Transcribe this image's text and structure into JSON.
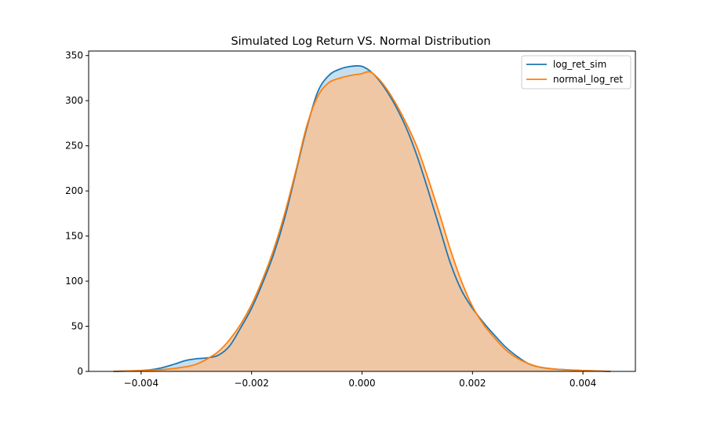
{
  "chart_data": {
    "type": "area",
    "title": "Simulated Log Return VS. Normal Distribution",
    "xlabel": "",
    "ylabel": "",
    "xlim": [
      -0.00495,
      0.00495
    ],
    "ylim": [
      0,
      355
    ],
    "xticks": [
      -0.004,
      -0.002,
      0.0,
      0.002,
      0.004
    ],
    "xtick_labels": [
      "−0.004",
      "−0.002",
      "0.000",
      "0.002",
      "0.004"
    ],
    "yticks": [
      0,
      50,
      100,
      150,
      200,
      250,
      300,
      350
    ],
    "ytick_labels": [
      "0",
      "50",
      "100",
      "150",
      "200",
      "250",
      "300",
      "350"
    ],
    "grid": false,
    "legend_position": "top-right",
    "series": [
      {
        "name": "log_ret_sim",
        "color": "#1f77b4",
        "fill": "#aed3ea",
        "x": [
          -0.0045,
          -0.004,
          -0.0037,
          -0.0034,
          -0.0032,
          -0.003,
          -0.0028,
          -0.0026,
          -0.0024,
          -0.0022,
          -0.002,
          -0.0018,
          -0.0016,
          -0.0014,
          -0.0012,
          -0.001,
          -0.0008,
          -0.0006,
          -0.0004,
          -0.0002,
          0.0,
          0.0002,
          0.0004,
          0.0006,
          0.0008,
          0.001,
          0.0012,
          0.0014,
          0.0016,
          0.0018,
          0.002,
          0.0022,
          0.0024,
          0.0026,
          0.0028,
          0.003,
          0.0032,
          0.0035,
          0.004,
          0.0045
        ],
        "y": [
          0,
          1,
          3,
          8,
          12,
          14,
          15,
          18,
          28,
          48,
          70,
          98,
          130,
          170,
          220,
          270,
          310,
          328,
          335,
          338,
          338,
          330,
          315,
          295,
          270,
          238,
          200,
          160,
          120,
          90,
          70,
          54,
          40,
          27,
          17,
          9,
          5,
          2.5,
          1,
          0
        ]
      },
      {
        "name": "normal_log_ret",
        "color": "#ff7f0e",
        "fill": "#ffbe86",
        "x": [
          -0.0045,
          -0.004,
          -0.0036,
          -0.0032,
          -0.003,
          -0.0028,
          -0.0026,
          -0.0024,
          -0.0022,
          -0.002,
          -0.0018,
          -0.0016,
          -0.0014,
          -0.0012,
          -0.001,
          -0.0008,
          -0.0006,
          -0.0004,
          -0.0002,
          0.0,
          0.0001,
          0.0002,
          0.0004,
          0.0006,
          0.0008,
          0.001,
          0.0012,
          0.0014,
          0.0016,
          0.0018,
          0.002,
          0.0022,
          0.0024,
          0.0026,
          0.0028,
          0.003,
          0.0032,
          0.0035,
          0.004,
          0.0045
        ],
        "y": [
          0,
          1,
          2,
          5,
          8,
          14,
          22,
          35,
          52,
          74,
          102,
          135,
          175,
          222,
          272,
          305,
          320,
          325,
          328,
          330,
          332,
          330,
          317,
          298,
          275,
          248,
          213,
          175,
          135,
          100,
          72,
          52,
          37,
          24,
          15,
          9,
          5,
          2.5,
          1,
          0
        ]
      }
    ]
  }
}
